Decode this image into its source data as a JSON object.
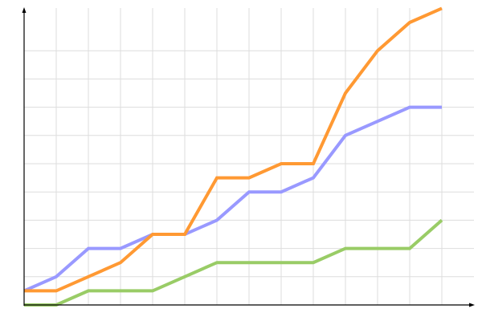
{
  "chart_data": {
    "type": "line",
    "title": "",
    "xlabel": "",
    "ylabel": "",
    "x": [
      0,
      1,
      2,
      3,
      4,
      5,
      6,
      7,
      8,
      9,
      10,
      11,
      12,
      13
    ],
    "xlim": [
      0,
      14
    ],
    "ylim": [
      0,
      21
    ],
    "grid": true,
    "legend": "none",
    "series": [
      {
        "color": "#9999ff",
        "values": [
          1,
          2,
          4,
          4,
          5,
          5,
          6,
          8,
          8,
          9,
          12,
          13,
          14,
          14
        ]
      },
      {
        "color": "#ff9933",
        "values": [
          1,
          1,
          2,
          3,
          5,
          5,
          9,
          9,
          10,
          10,
          15,
          18,
          20,
          21
        ]
      },
      {
        "color": "#99cc66",
        "values": [
          0,
          0,
          1,
          1,
          1,
          2,
          3,
          3,
          3,
          3,
          4,
          4,
          4,
          6
        ]
      }
    ]
  }
}
